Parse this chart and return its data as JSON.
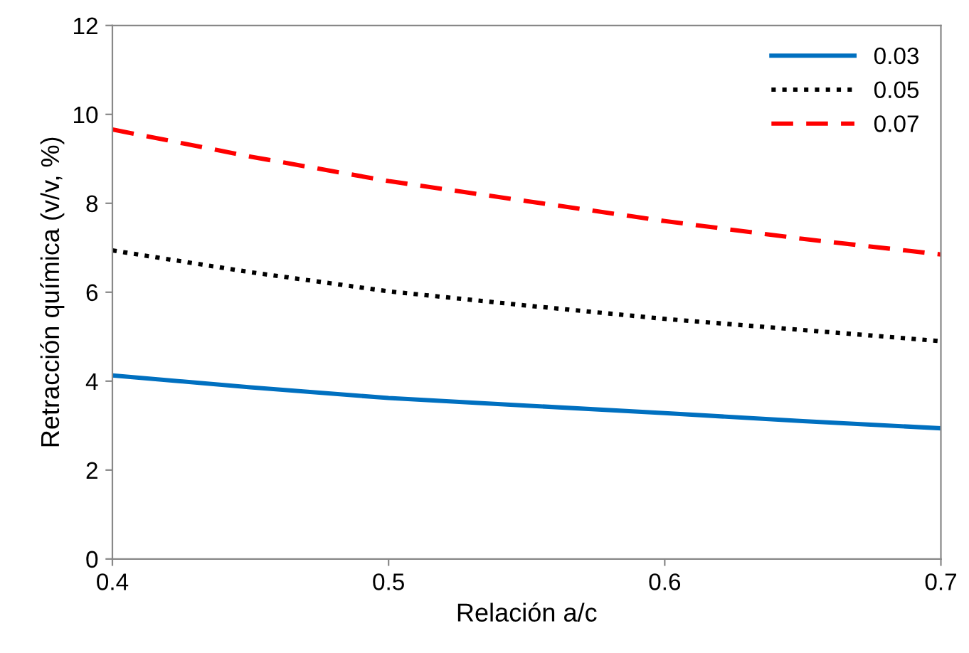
{
  "chart_data": {
    "type": "line",
    "xlabel": "Relación a/c",
    "ylabel": "Retracción química (v/v, %)",
    "x": [
      0.4,
      0.45,
      0.5,
      0.55,
      0.6,
      0.65,
      0.7
    ],
    "series": [
      {
        "name": "0.03",
        "color": "#0070c0",
        "line_style": "solid",
        "values": [
          4.13,
          3.86,
          3.62,
          3.45,
          3.28,
          3.1,
          2.94
        ]
      },
      {
        "name": "0.05",
        "color": "#000000",
        "line_style": "dotted",
        "values": [
          6.94,
          6.45,
          6.02,
          5.7,
          5.4,
          5.15,
          4.9
        ]
      },
      {
        "name": "0.07",
        "color": "#ff0000",
        "line_style": "dashed",
        "values": [
          9.66,
          9.05,
          8.5,
          8.05,
          7.6,
          7.2,
          6.85
        ]
      }
    ],
    "xlim": [
      0.4,
      0.7
    ],
    "xticks": [
      {
        "value": 0.4,
        "label": "0.4"
      },
      {
        "value": 0.5,
        "label": "0.5"
      },
      {
        "value": 0.6,
        "label": "0.6"
      },
      {
        "value": 0.7,
        "label": "0.7"
      }
    ],
    "ylim": [
      0,
      12
    ],
    "yticks": [
      0,
      2,
      4,
      6,
      8,
      10,
      12
    ],
    "grid": false,
    "legend": "top right",
    "marker": "none"
  }
}
